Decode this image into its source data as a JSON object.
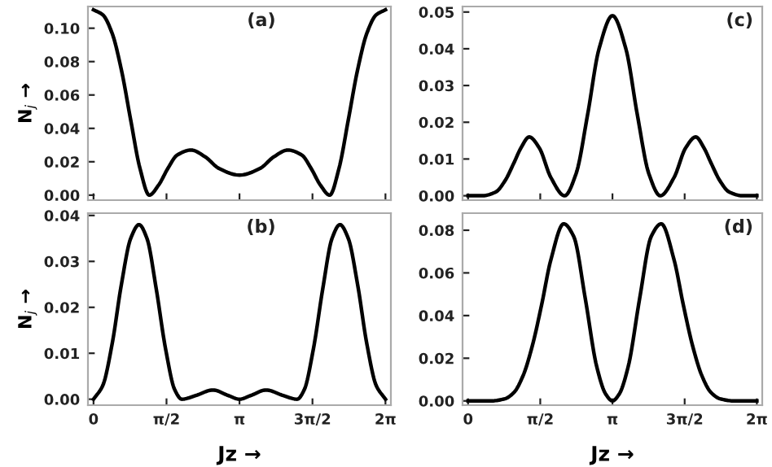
{
  "chart_data": [
    {
      "type": "line",
      "ylabel": "N$_{j}$ →",
      "annotations": [
        "(a)"
      ],
      "tick_labels": "y",
      "xlim": [
        -0.12,
        6.4
      ],
      "ylim": [
        -0.003,
        0.113
      ],
      "xticks": [
        {
          "value": 0,
          "label": null
        },
        {
          "value": 1.5708,
          "label": null
        },
        {
          "value": 3.1416,
          "label": null
        },
        {
          "value": 4.7124,
          "label": null
        },
        {
          "value": 6.2832,
          "label": null
        }
      ],
      "yticks": [
        {
          "value": 0,
          "label": "0.00"
        },
        {
          "value": 0.02,
          "label": "0.02"
        },
        {
          "value": 0.04,
          "label": "0.04"
        },
        {
          "value": 0.06,
          "label": "0.06"
        },
        {
          "value": 0.08,
          "label": "0.08"
        },
        {
          "value": 0.1,
          "label": "0.10"
        }
      ],
      "series": [
        {
          "color": "#000000",
          "x": [
            0,
            0.2,
            0.4,
            0.6,
            0.8,
            1.0,
            1.2,
            1.4,
            1.6,
            1.8,
            2.1,
            2.4,
            2.7,
            3.1416,
            3.5832,
            3.8832,
            4.1832,
            4.4832,
            4.6832,
            4.8832,
            5.0832,
            5.2832,
            5.4832,
            5.6832,
            5.8832,
            6.0832,
            6.2832
          ],
          "values": [
            0.111,
            0.108,
            0.097,
            0.075,
            0.045,
            0.016,
            0,
            0.006,
            0.016,
            0.024,
            0.027,
            0.023,
            0.016,
            0.012,
            0.016,
            0.023,
            0.027,
            0.024,
            0.016,
            0.006,
            0,
            0.016,
            0.045,
            0.075,
            0.097,
            0.108,
            0.111
          ]
        }
      ]
    },
    {
      "type": "line",
      "annotations": [
        "(c)"
      ],
      "tick_labels": "y",
      "xlim": [
        -0.12,
        6.4
      ],
      "ylim": [
        -0.0012,
        0.0515
      ],
      "xticks": [
        {
          "value": 0,
          "label": null
        },
        {
          "value": 1.5708,
          "label": null
        },
        {
          "value": 3.1416,
          "label": null
        },
        {
          "value": 4.7124,
          "label": null
        },
        {
          "value": 6.2832,
          "label": null
        }
      ],
      "yticks": [
        {
          "value": 0,
          "label": "0.00"
        },
        {
          "value": 0.01,
          "label": "0.01"
        },
        {
          "value": 0.02,
          "label": "0.02"
        },
        {
          "value": 0.03,
          "label": "0.03"
        },
        {
          "value": 0.04,
          "label": "0.04"
        },
        {
          "value": 0.05,
          "label": "0.05"
        }
      ],
      "series": [
        {
          "color": "#000000",
          "x": [
            0,
            0.3,
            0.6,
            0.8,
            1.0,
            1.15,
            1.33,
            1.55,
            1.8,
            2.1,
            2.35,
            2.6,
            2.85,
            3.1416,
            3.4332,
            3.6832,
            3.9332,
            4.1832,
            4.4832,
            4.7332,
            4.9532,
            5.1332,
            5.2832,
            5.4832,
            5.6832,
            5.9832,
            6.2832
          ],
          "values": [
            0,
            0,
            0.001,
            0.004,
            0.009,
            0.013,
            0.016,
            0.013,
            0.005,
            0,
            0.006,
            0.022,
            0.04,
            0.049,
            0.04,
            0.022,
            0.006,
            0,
            0.005,
            0.013,
            0.016,
            0.013,
            0.009,
            0.004,
            0.001,
            0,
            0
          ]
        }
      ]
    },
    {
      "type": "line",
      "xlabel": "Jz →",
      "ylabel": "N$_{j}$ →",
      "annotations": [
        "(b)"
      ],
      "xlim": [
        -0.12,
        6.4
      ],
      "ylim": [
        -0.0013,
        0.0405
      ],
      "xticks": [
        0,
        {
          "value": 1.5708,
          "label": "π/2"
        },
        {
          "value": 3.1416,
          "label": "π"
        },
        {
          "value": 4.7124,
          "label": "3π/2"
        },
        {
          "value": 6.2832,
          "label": "2π"
        }
      ],
      "yticks": [
        {
          "value": 0,
          "label": "0.00"
        },
        {
          "value": 0.01,
          "label": "0.01"
        },
        {
          "value": 0.02,
          "label": "0.02"
        },
        {
          "value": 0.03,
          "label": "0.03"
        },
        {
          "value": 0.04,
          "label": "0.04"
        }
      ],
      "series": [
        {
          "color": "#000000",
          "x": [
            0,
            0.2,
            0.4,
            0.6,
            0.8,
            0.98,
            1.15,
            1.35,
            1.55,
            1.75,
            1.9,
            2.2,
            2.57,
            2.9,
            3.1416,
            3.3832,
            3.7132,
            4.0832,
            4.3832,
            4.5332,
            4.7332,
            4.9332,
            5.1332,
            5.3032,
            5.4832,
            5.6832,
            5.8832,
            6.0832,
            6.2832
          ],
          "values": [
            0,
            0.003,
            0.012,
            0.025,
            0.035,
            0.038,
            0.035,
            0.024,
            0.011,
            0.002,
            0,
            0.0008,
            0.002,
            0.0008,
            0,
            0.0008,
            0.002,
            0.0008,
            0,
            0.002,
            0.011,
            0.024,
            0.035,
            0.038,
            0.035,
            0.025,
            0.012,
            0.003,
            0
          ]
        }
      ]
    },
    {
      "type": "line",
      "xlabel": "Jz →",
      "annotations": [
        "(d)"
      ],
      "xlim": [
        -0.12,
        6.4
      ],
      "ylim": [
        -0.002,
        0.088
      ],
      "xticks": [
        0,
        {
          "value": 1.5708,
          "label": "π/2"
        },
        {
          "value": 3.1416,
          "label": "π"
        },
        {
          "value": 4.7124,
          "label": "3π/2"
        },
        {
          "value": 6.2832,
          "label": "2π"
        }
      ],
      "yticks": [
        {
          "value": 0,
          "label": "0.00"
        },
        {
          "value": 0.02,
          "label": "0.02"
        },
        {
          "value": 0.04,
          "label": "0.04"
        },
        {
          "value": 0.06,
          "label": "0.06"
        },
        {
          "value": 0.08,
          "label": "0.08"
        }
      ],
      "series": [
        {
          "color": "#000000",
          "x": [
            0,
            0.5,
            0.8,
            1.0,
            1.2,
            1.4,
            1.6,
            1.8,
            2.08,
            2.3,
            2.55,
            2.8,
            3.0,
            3.1416,
            3.2832,
            3.4832,
            3.7332,
            3.9832,
            4.2032,
            4.4832,
            4.6832,
            4.8832,
            5.0832,
            5.2832,
            5.4832,
            5.7832,
            6.2832
          ],
          "values": [
            0,
            0,
            0.001,
            0.004,
            0.012,
            0.026,
            0.045,
            0.066,
            0.083,
            0.077,
            0.048,
            0.016,
            0.003,
            0,
            0.003,
            0.016,
            0.048,
            0.077,
            0.083,
            0.066,
            0.045,
            0.026,
            0.012,
            0.004,
            0.001,
            0,
            0
          ]
        }
      ]
    }
  ]
}
